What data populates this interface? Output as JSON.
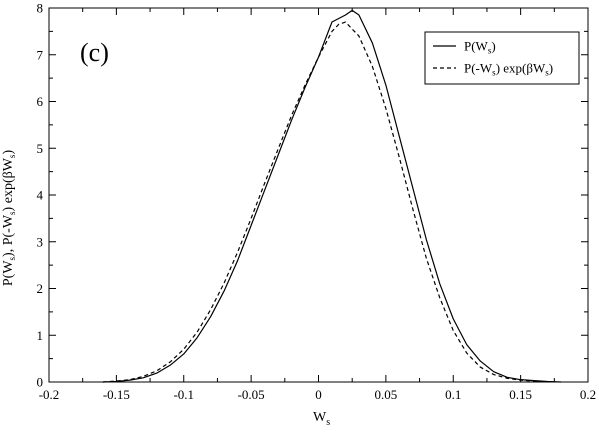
{
  "chart_data": {
    "type": "line",
    "panel_label": "(c)",
    "xlabel": {
      "main": "W",
      "sub": "s"
    },
    "ylabel": "P(W_s), P(-W_s) exp(βW_s)",
    "xlim": [
      -0.2,
      0.2
    ],
    "ylim": [
      0,
      8
    ],
    "x_ticks": [
      -0.2,
      -0.15,
      -0.1,
      -0.05,
      0,
      0.05,
      0.1,
      0.15,
      0.2
    ],
    "x_tick_labels": [
      "-0.2",
      "-0.15",
      "-0.1",
      "-0.05",
      "0",
      "0.05",
      "0.1",
      "0.15",
      "0.2"
    ],
    "y_ticks": [
      0,
      1,
      2,
      3,
      4,
      5,
      6,
      7,
      8
    ],
    "y_tick_labels": [
      "0",
      "1",
      "2",
      "3",
      "4",
      "5",
      "6",
      "7",
      "8"
    ],
    "legend_position": "top-right",
    "series": [
      {
        "name": "P(W_s)",
        "style": "solid",
        "color": "#000000",
        "x": [
          -0.16,
          -0.15,
          -0.14,
          -0.13,
          -0.12,
          -0.11,
          -0.1,
          -0.09,
          -0.08,
          -0.07,
          -0.06,
          -0.05,
          -0.04,
          -0.03,
          -0.02,
          -0.01,
          0.0,
          0.01,
          0.02,
          0.025,
          0.03,
          0.04,
          0.05,
          0.06,
          0.07,
          0.08,
          0.09,
          0.1,
          0.11,
          0.12,
          0.13,
          0.14,
          0.15,
          0.16,
          0.17,
          0.18
        ],
        "y": [
          0.0,
          0.01,
          0.04,
          0.09,
          0.19,
          0.36,
          0.6,
          0.95,
          1.4,
          1.95,
          2.6,
          3.35,
          4.1,
          4.85,
          5.6,
          6.3,
          6.95,
          7.7,
          7.85,
          7.95,
          7.85,
          7.25,
          6.35,
          5.25,
          4.15,
          3.05,
          2.1,
          1.35,
          0.8,
          0.45,
          0.22,
          0.1,
          0.05,
          0.03,
          0.01,
          0.0
        ]
      },
      {
        "name": "P(-W_s) exp(βW_s)",
        "style": "dashed",
        "color": "#000000",
        "x": [
          -0.16,
          -0.15,
          -0.14,
          -0.13,
          -0.12,
          -0.11,
          -0.1,
          -0.09,
          -0.08,
          -0.07,
          -0.06,
          -0.05,
          -0.04,
          -0.03,
          -0.02,
          -0.01,
          0.0,
          0.01,
          0.015,
          0.02,
          0.03,
          0.04,
          0.05,
          0.06,
          0.07,
          0.08,
          0.09,
          0.1,
          0.11,
          0.12,
          0.13,
          0.14,
          0.15,
          0.16,
          0.17
        ],
        "y": [
          0.0,
          0.02,
          0.05,
          0.12,
          0.24,
          0.43,
          0.7,
          1.07,
          1.55,
          2.12,
          2.78,
          3.5,
          4.25,
          4.98,
          5.7,
          6.35,
          6.95,
          7.5,
          7.65,
          7.7,
          7.4,
          6.75,
          5.85,
          4.8,
          3.7,
          2.65,
          1.8,
          1.1,
          0.62,
          0.32,
          0.16,
          0.08,
          0.04,
          0.02,
          0.0
        ]
      }
    ]
  }
}
